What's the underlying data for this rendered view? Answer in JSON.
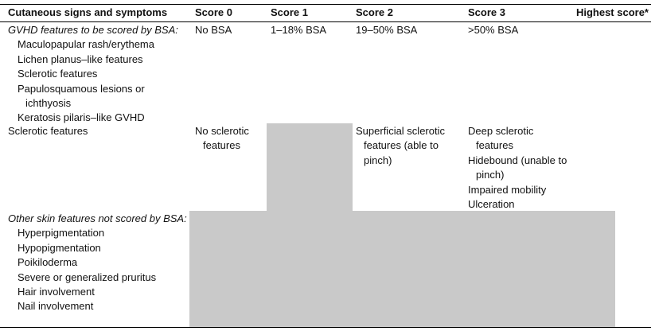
{
  "header": [
    "Cutaneous signs and symptoms",
    "Score 0",
    "Score 1",
    "Score 2",
    "Score 3",
    "Highest score*"
  ],
  "rows": [
    {
      "feature_heading": "GVHD features to be scored by BSA:",
      "feature_items": [
        "Maculopapular rash/erythema",
        "Lichen planus–like features",
        "Sclerotic features",
        "Papulosquamous lesions or ichthyosis",
        "Keratosis pilaris–like GVHD"
      ],
      "scores": [
        [
          "No BSA"
        ],
        [
          "1–18% BSA"
        ],
        [
          "19–50% BSA"
        ],
        [
          ">50% BSA"
        ]
      ]
    },
    {
      "feature": "Sclerotic features",
      "scores": [
        [
          "No sclerotic features"
        ],
        [],
        [
          "Superficial sclerotic features (able to pinch)"
        ],
        [
          "Deep sclerotic features",
          "Hidebound (unable to pinch)",
          "Impaired mobility",
          "Ulceration"
        ]
      ]
    },
    {
      "feature_heading": "Other skin features not scored by BSA:",
      "feature_items": [
        "Hyperpigmentation",
        "Hypopigmentation",
        "Poikiloderma",
        "Severe or generalized pruritus",
        "Hair involvement",
        "Nail involvement"
      ]
    }
  ]
}
